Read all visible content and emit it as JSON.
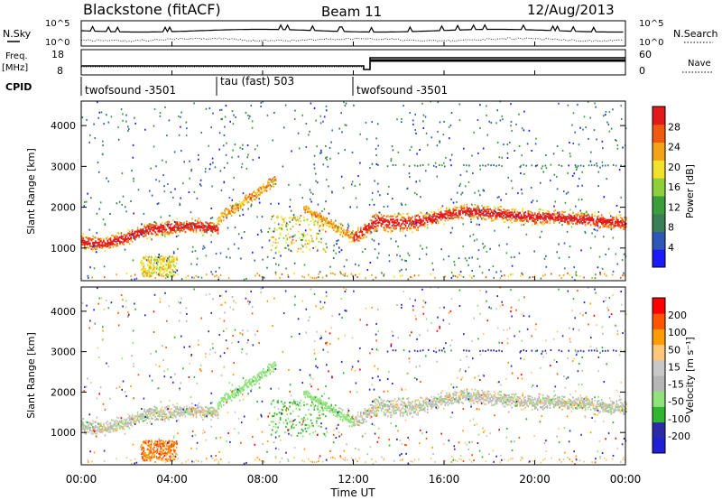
{
  "header": {
    "site": "Blackstone (fitACF)",
    "beam": "Beam 11",
    "date": "12/Aug/2013"
  },
  "panels": {
    "nsky_label": "N.Sky",
    "nsearch_label": "N.Search",
    "noise_ticks": [
      "10^5",
      "10^0"
    ],
    "freq_label_1": "Freq.",
    "freq_label_2": "[MHz]",
    "freq_ticks": [
      "18",
      "8"
    ],
    "nave_label": "Nave",
    "nave_ticks": [
      "60",
      "0"
    ],
    "cpid_label": "CPID",
    "cpid_segments": [
      {
        "label": "twofsound -3501",
        "start_hour": 0.0,
        "end_hour": 6.0
      },
      {
        "label": "tau (fast) 503",
        "start_hour": 6.0,
        "end_hour": 12.0
      },
      {
        "label": "twofsound -3501",
        "start_hour": 12.0,
        "end_hour": 24.0
      }
    ]
  },
  "colors": {
    "power_scale": [
      "#1a1aff",
      "#2e57b8",
      "#3a7f56",
      "#3b9e3b",
      "#8fcf3a",
      "#f2e22b",
      "#f2a31a",
      "#ee5a10",
      "#e31a1a"
    ],
    "velocity_scale": [
      "#ff0000",
      "#ff5500",
      "#ff9d00",
      "#ffc77a",
      "#c8c8c8",
      "#b6b6b6",
      "#90e27a",
      "#2fb52f",
      "#2a2aa8",
      "#1f1fd6"
    ]
  },
  "chart_data": [
    {
      "type": "heatmap",
      "name": "Power",
      "title": "Blackstone (fitACF) Beam 11 12/Aug/2013",
      "xlabel": "Time UT",
      "ylabel": "Slant Range [km]",
      "xlim": [
        0,
        24
      ],
      "ylim": [
        200,
        4600
      ],
      "x_ticks": [
        "00:00",
        "04:00",
        "08:00",
        "12:00",
        "16:00",
        "20:00",
        "00:00"
      ],
      "y_ticks": [
        "1000",
        "2000",
        "3000",
        "4000"
      ],
      "colorbar_label": "Power [dB]",
      "colorbar_ticks": [
        "4",
        "8",
        "12",
        "16",
        "20",
        "24",
        "28"
      ],
      "colorbar_range": [
        0,
        32
      ],
      "main_echo_band_km": [
        [
          0,
          1150
        ],
        [
          1,
          1100
        ],
        [
          2,
          1250
        ],
        [
          3,
          1450
        ],
        [
          4,
          1500
        ],
        [
          5,
          1550
        ],
        [
          6,
          1450
        ],
        [
          12,
          1250
        ],
        [
          13,
          1650
        ],
        [
          14,
          1600
        ],
        [
          15,
          1650
        ],
        [
          16,
          1800
        ],
        [
          17,
          1900
        ],
        [
          18,
          1850
        ],
        [
          19,
          1800
        ],
        [
          20,
          1750
        ],
        [
          21,
          1750
        ],
        [
          22,
          1700
        ],
        [
          23,
          1650
        ],
        [
          24,
          1600
        ]
      ]
    },
    {
      "type": "heatmap",
      "name": "Velocity",
      "xlabel": "Time UT",
      "ylabel": "Slant Range [km]",
      "xlim": [
        0,
        24
      ],
      "ylim": [
        200,
        4600
      ],
      "x_ticks": [
        "00:00",
        "04:00",
        "08:00",
        "12:00",
        "16:00",
        "20:00",
        "00:00"
      ],
      "y_ticks": [
        "1000",
        "2000",
        "3000",
        "4000"
      ],
      "colorbar_label": "Velocity [m s⁻¹]",
      "colorbar_ticks": [
        "200",
        "100",
        "50",
        "15",
        "-15",
        "-50",
        "-100",
        "-200"
      ],
      "colorbar_range": [
        -250,
        250
      ]
    }
  ]
}
